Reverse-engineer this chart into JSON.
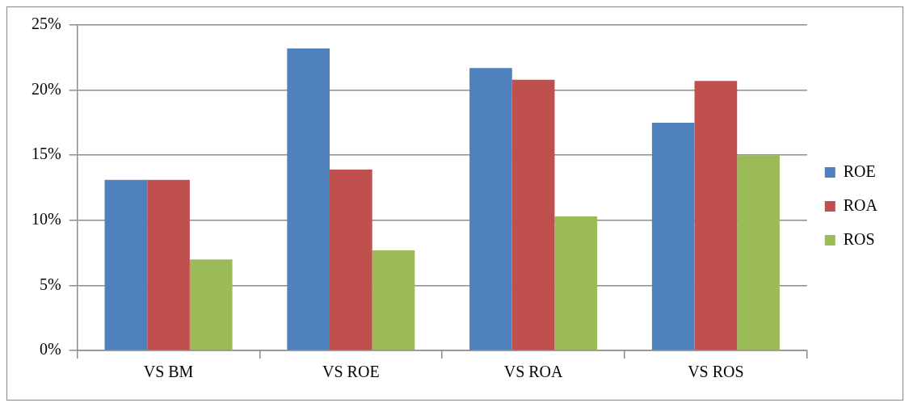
{
  "chart_data": {
    "type": "bar",
    "categories": [
      "VS BM",
      "VS ROE",
      "VS ROA",
      "VS ROS"
    ],
    "series": [
      {
        "name": "ROE",
        "color": "#4f81bd",
        "values": [
          13.1,
          23.2,
          21.7,
          17.5
        ]
      },
      {
        "name": "ROA",
        "color": "#c0504d",
        "values": [
          13.1,
          13.9,
          20.8,
          20.7
        ]
      },
      {
        "name": "ROS",
        "color": "#9bbb59",
        "values": [
          7.0,
          7.7,
          10.3,
          15.0
        ]
      }
    ],
    "ylim": [
      0,
      25
    ],
    "yticks": [
      {
        "value": 0,
        "label": "0%"
      },
      {
        "value": 5,
        "label": "5%"
      },
      {
        "value": 10,
        "label": "10%"
      },
      {
        "value": 15,
        "label": "15%"
      },
      {
        "value": 20,
        "label": "20%"
      },
      {
        "value": 25,
        "label": "25%"
      }
    ],
    "grid": "y",
    "legend": "right"
  }
}
